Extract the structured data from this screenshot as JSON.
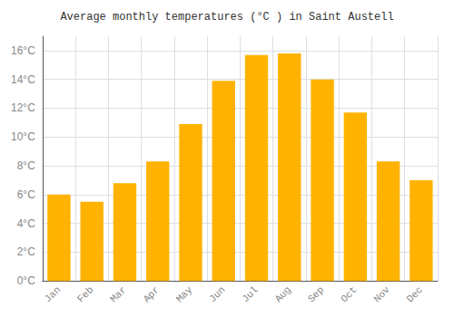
{
  "chart_data": {
    "type": "bar",
    "title": "Average monthly temperatures (°C ) in Saint Austell",
    "categories": [
      "Jan",
      "Feb",
      "Mar",
      "Apr",
      "May",
      "Jun",
      "Jul",
      "Aug",
      "Sep",
      "Oct",
      "Nov",
      "Dec"
    ],
    "values": [
      6.0,
      5.5,
      6.8,
      8.3,
      10.9,
      13.9,
      15.7,
      15.8,
      14.0,
      11.7,
      8.3,
      7.0
    ],
    "color": "#FFB300",
    "ylim": [
      0,
      17
    ],
    "yticks": [
      {
        "value": 0,
        "label": "0°C"
      },
      {
        "value": 2,
        "label": "2°C"
      },
      {
        "value": 4,
        "label": "4°C"
      },
      {
        "value": 6,
        "label": "6°C"
      },
      {
        "value": 8,
        "label": "8°C"
      },
      {
        "value": 10,
        "label": "10°C"
      },
      {
        "value": 12,
        "label": "12°C"
      },
      {
        "value": 14,
        "label": "14°C"
      },
      {
        "value": 16,
        "label": "16°C"
      }
    ],
    "grid": true
  }
}
